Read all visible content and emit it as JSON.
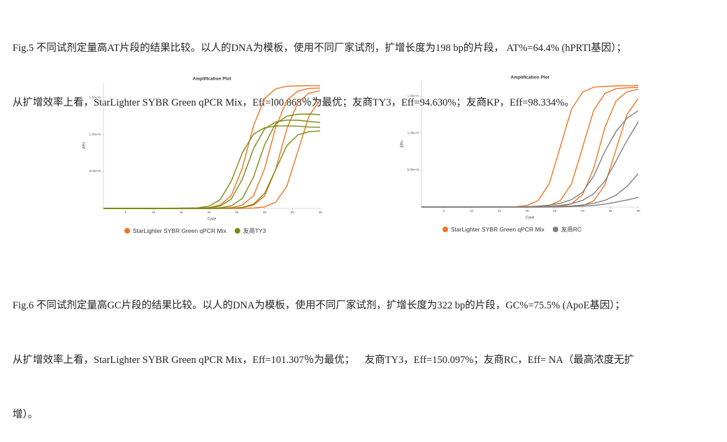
{
  "captions": [
    {
      "lines": [
        "Fig.5 不同试剂定量高AT片段的结果比较。以人的DNA为模板，使用不同厂家试剂，扩增长度为198 bp的片段， AT%=64.4% (hPRTl基因）；",
        "从扩增效率上看，StarLighter SYBR Green qPCR Mix，Eff=l00.868％为最优；友商TY3，Eff=94.630%；友商KP，Eff=98.334%。"
      ]
    },
    {
      "lines": [
        "Fig.6 不同试剂定量高GC片段的结果比较。以人的DNA为模板，使用不同厂家试剂，扩增长度为322 bp的片段，GC%=75.5% (ApoE基因）；",
        "从扩增效率上看，StarLighter SYBR Green qPCR Mix，Eff=101.307％为最优；    友商TY3，Eff=150.097%；友商RC，Eff= NA（最高浓度无扩",
        "增）。"
      ]
    }
  ],
  "chart_data": [
    {
      "type": "line",
      "title": "Amplification Plot",
      "x_label": "Cycle",
      "y_label": "ΔRn",
      "x": [
        1,
        10,
        18,
        20,
        22,
        24,
        26,
        28,
        30,
        32,
        34,
        36,
        38,
        40
      ],
      "xlim": [
        1,
        40
      ],
      "xticks": [
        5,
        10,
        15,
        20,
        25,
        30,
        35,
        40
      ],
      "ylim": [
        0,
        1700000
      ],
      "yticks": [
        {
          "value": 500000,
          "label": "5.00e+5"
        },
        {
          "value": 1000000,
          "label": "1.00e+6"
        },
        {
          "value": 1500000,
          "label": "1.50e+6"
        }
      ],
      "series": [
        {
          "name": "StarLighter SYBR Green qPCR Mix",
          "color": "#f07522",
          "curves": [
            [
              0,
              0,
              3000,
              11000,
              45000,
              174000,
              546000,
              1114000,
              1486000,
              1615000,
              1650000,
              1655000,
              1657000,
              1658000
            ],
            [
              0,
              0,
              0,
              1000,
              3000,
              11000,
              44000,
              171000,
              536000,
              1094000,
              1459000,
              1586000,
              1620000,
              1626000
            ],
            [
              0,
              0,
              0,
              0,
              1000,
              3000,
              11000,
              43000,
              168000,
              526000,
              1074000,
              1432000,
              1557000,
              1590000
            ],
            [
              0,
              0,
              0,
              0,
              0,
              0,
              1000,
              5000,
              20000,
              84000,
              299000,
              775000,
              1251000,
              1466000
            ]
          ]
        },
        {
          "name": "友商TY3",
          "color": "#7a8a10",
          "curves": [
            [
              0,
              0,
              8000,
              30000,
              118000,
              368000,
              752000,
              1002000,
              1090000,
              1113000,
              1115000,
              1110000,
              1100000,
              1095000
            ],
            [
              0,
              0,
              2000,
              8000,
              32000,
              126000,
              395000,
              805000,
              1074000,
              1168000,
              1193000,
              1190000,
              1175000,
              1160000
            ],
            [
              0,
              0,
              0,
              2000,
              9000,
              35000,
              134000,
              421000,
              859000,
              1146000,
              1245000,
              1272000,
              1275000,
              1265000
            ],
            [
              0,
              0,
              0,
              0,
              1000,
              3000,
              14000,
              57000,
              203000,
              525000,
              847000,
              993000,
              1036000,
              1047000
            ]
          ]
        }
      ]
    },
    {
      "type": "line",
      "title": "Amplification Plot",
      "x_label": "Cycle",
      "y_label": "ΔRn",
      "x": [
        1,
        10,
        18,
        20,
        22,
        24,
        26,
        28,
        30,
        32,
        34,
        36,
        38,
        40
      ],
      "xlim": [
        1,
        40
      ],
      "xticks": [
        5,
        10,
        15,
        20,
        25,
        30,
        35,
        40
      ],
      "ylim": [
        0,
        1700000
      ],
      "yticks": [
        {
          "value": 500000,
          "label": "5.00e+5"
        },
        {
          "value": 1000000,
          "label": "1.00e+6"
        },
        {
          "value": 1500000,
          "label": "1.50e+6"
        }
      ],
      "series": [
        {
          "name": "StarLighter SYBR Green qPCR Mix",
          "color": "#f07522",
          "curves": [
            [
              0,
              0,
              5000,
              21000,
              89000,
              317000,
              820000,
              1323000,
              1551000,
              1619000,
              1630000,
              1635000,
              1638000,
              1640000
            ],
            [
              0,
              0,
              0,
              1000,
              5000,
              21000,
              87000,
              313000,
              810000,
              1307000,
              1533000,
              1599000,
              1610000,
              1615000
            ],
            [
              0,
              0,
              0,
              0,
              1000,
              3000,
              11000,
              43000,
              168000,
              526000,
              1074000,
              1432000,
              1557000,
              1590000
            ],
            [
              0,
              0,
              0,
              0,
              0,
              0,
              1000,
              5000,
              20000,
              84000,
              299000,
              775000,
              1251000,
              1466000
            ]
          ]
        },
        {
          "name": "友商RC",
          "color": "#808080",
          "curves": [
            [
              0,
              0,
              2000,
              5000,
              12000,
              25000,
              50000,
              100000,
              200000,
              420000,
              750000,
              1020000,
              1200000,
              1300000
            ],
            [
              0,
              0,
              1000,
              2000,
              5000,
              10000,
              22000,
              45000,
              90000,
              180000,
              350000,
              620000,
              900000,
              1150000
            ],
            [
              0,
              0,
              0,
              0,
              1000,
              3000,
              8000,
              15000,
              28000,
              50000,
              90000,
              160000,
              280000,
              450000
            ],
            [
              0,
              0,
              0,
              0,
              0,
              1000,
              3000,
              6000,
              12000,
              22000,
              40000,
              65000,
              95000,
              130000
            ]
          ]
        }
      ]
    }
  ]
}
